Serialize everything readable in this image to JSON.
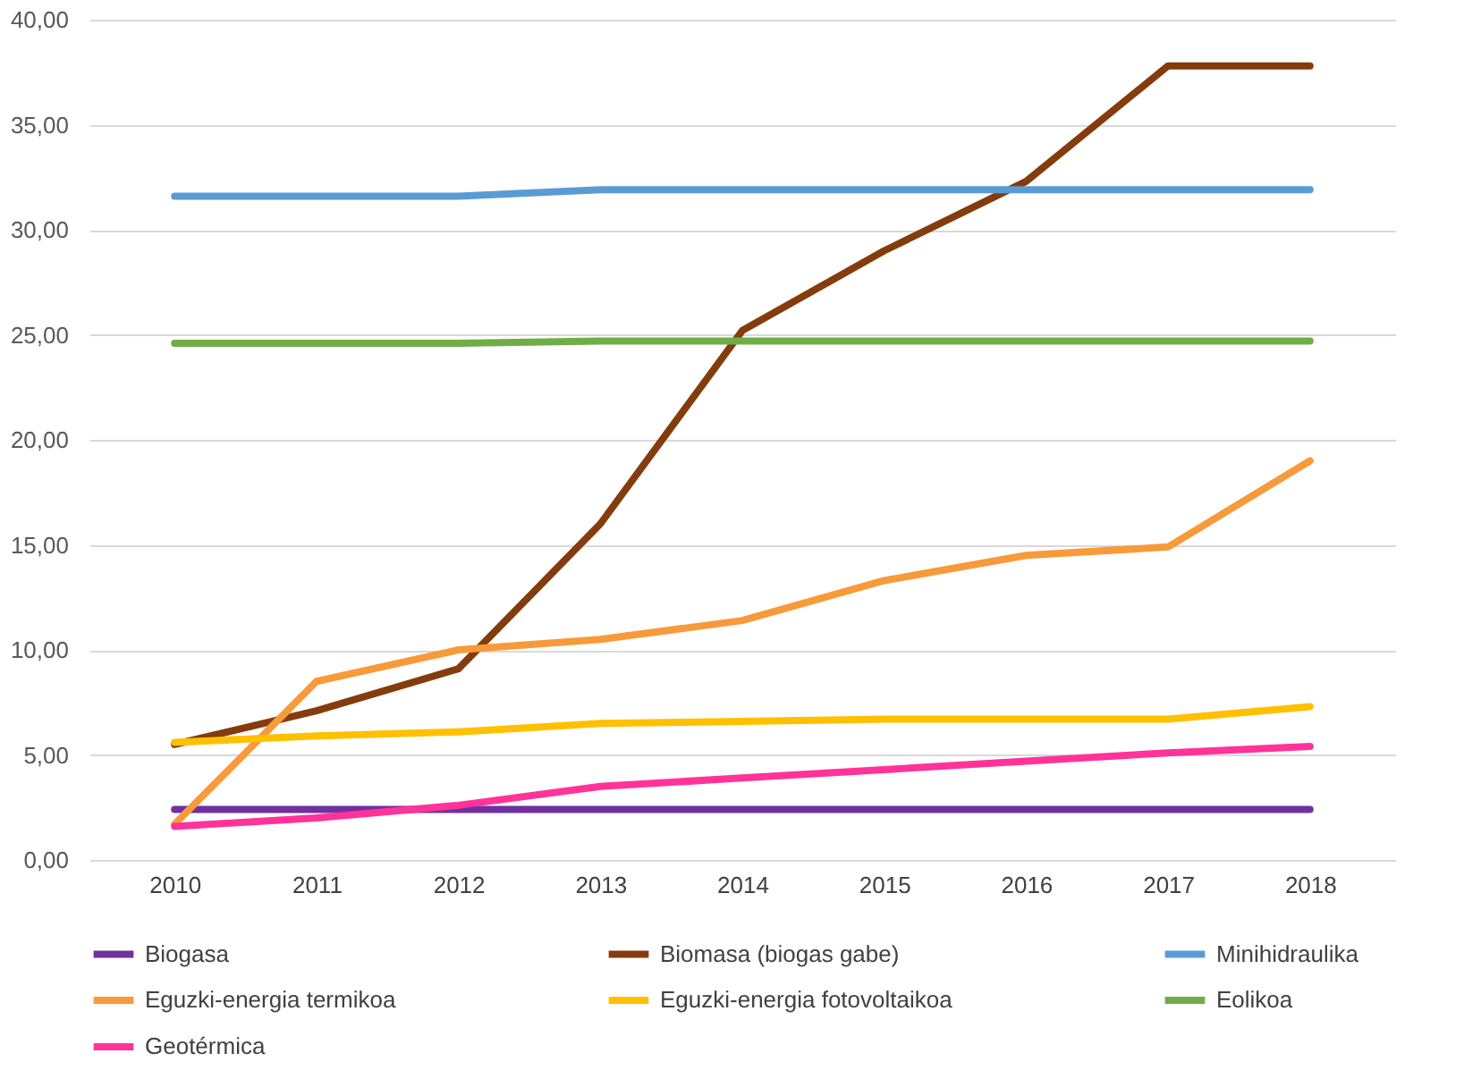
{
  "chart_data": {
    "type": "line",
    "categories": [
      "2010",
      "2011",
      "2012",
      "2013",
      "2014",
      "2015",
      "2016",
      "2017",
      "2018"
    ],
    "series": [
      {
        "name": "Biogasa",
        "color": "#7030a0",
        "values": [
          2.4,
          2.4,
          2.4,
          2.4,
          2.4,
          2.4,
          2.4,
          2.4,
          2.4
        ]
      },
      {
        "name": "Biomasa (biogas gabe)",
        "color": "#843c0c",
        "values": [
          5.5,
          7.1,
          9.1,
          16,
          25.2,
          29,
          32.3,
          37.8,
          37.8
        ]
      },
      {
        "name": "Minihidraulika",
        "color": "#5b9bd5",
        "values": [
          31.6,
          31.6,
          31.6,
          31.9,
          31.9,
          31.9,
          31.9,
          31.9,
          31.9
        ]
      },
      {
        "name": "Eguzki-energia termikoa",
        "color": "#f79a3a",
        "values": [
          1.7,
          8.5,
          10,
          10.5,
          11.4,
          13.3,
          14.5,
          14.9,
          19
        ]
      },
      {
        "name": "Eguzki-energia fotovoltaikoa",
        "color": "#ffc000",
        "values": [
          5.6,
          5.9,
          6.1,
          6.5,
          6.6,
          6.7,
          6.7,
          6.7,
          7.3
        ]
      },
      {
        "name": "Eolikoa",
        "color": "#70ad47",
        "values": [
          24.6,
          24.6,
          24.6,
          24.7,
          24.7,
          24.7,
          24.7,
          24.7,
          24.7
        ]
      },
      {
        "name": "Geotérmica",
        "color": "#ff3399",
        "values": [
          1.6,
          2.0,
          2.6,
          3.5,
          3.9,
          4.3,
          4.7,
          5.1,
          5.4
        ]
      }
    ],
    "ylim": [
      0,
      40
    ],
    "yticks": [
      {
        "value": 0,
        "label": "0,00"
      },
      {
        "value": 5,
        "label": "5,00"
      },
      {
        "value": 10,
        "label": "10,00"
      },
      {
        "value": 15,
        "label": "15,00"
      },
      {
        "value": 20,
        "label": "20,00"
      },
      {
        "value": 25,
        "label": "25,00"
      },
      {
        "value": 30,
        "label": "30,00"
      },
      {
        "value": 35,
        "label": "35,00"
      },
      {
        "value": 40,
        "label": "40,00"
      }
    ],
    "grid": "y",
    "legend": "bottom",
    "marker": "none",
    "line_style": "solid"
  }
}
